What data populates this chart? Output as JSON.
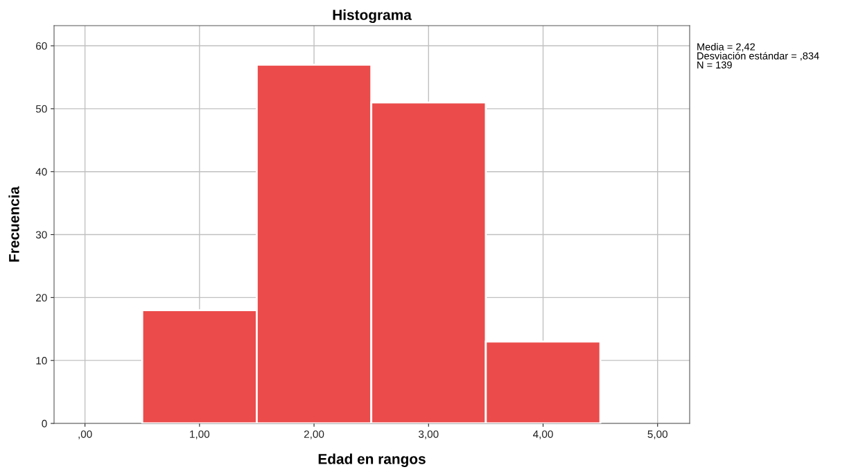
{
  "chart_data": {
    "type": "histogram",
    "title": "Histograma",
    "xlabel": "Edad en rangos",
    "ylabel": "Frecuencia",
    "bins": [
      0.5,
      1.5,
      2.5,
      3.5,
      4.5
    ],
    "values": [
      18,
      57,
      51,
      13
    ],
    "color": "#eb4b4b",
    "xlim": [
      -0.27,
      5.28
    ],
    "xticks": [
      {
        "value": 0,
        "label": ",00"
      },
      {
        "value": 1,
        "label": "1,00"
      },
      {
        "value": 2,
        "label": "2,00"
      },
      {
        "value": 3,
        "label": "3,00"
      },
      {
        "value": 4,
        "label": "4,00"
      },
      {
        "value": 5,
        "label": "5,00"
      }
    ],
    "ylim": [
      0,
      63.2
    ],
    "yticks": [
      0,
      10,
      20,
      30,
      40,
      50,
      60
    ],
    "grid": true,
    "annotations": [
      "Media = 2,42\nDesviación estándar = ,834\nN = 139"
    ]
  }
}
